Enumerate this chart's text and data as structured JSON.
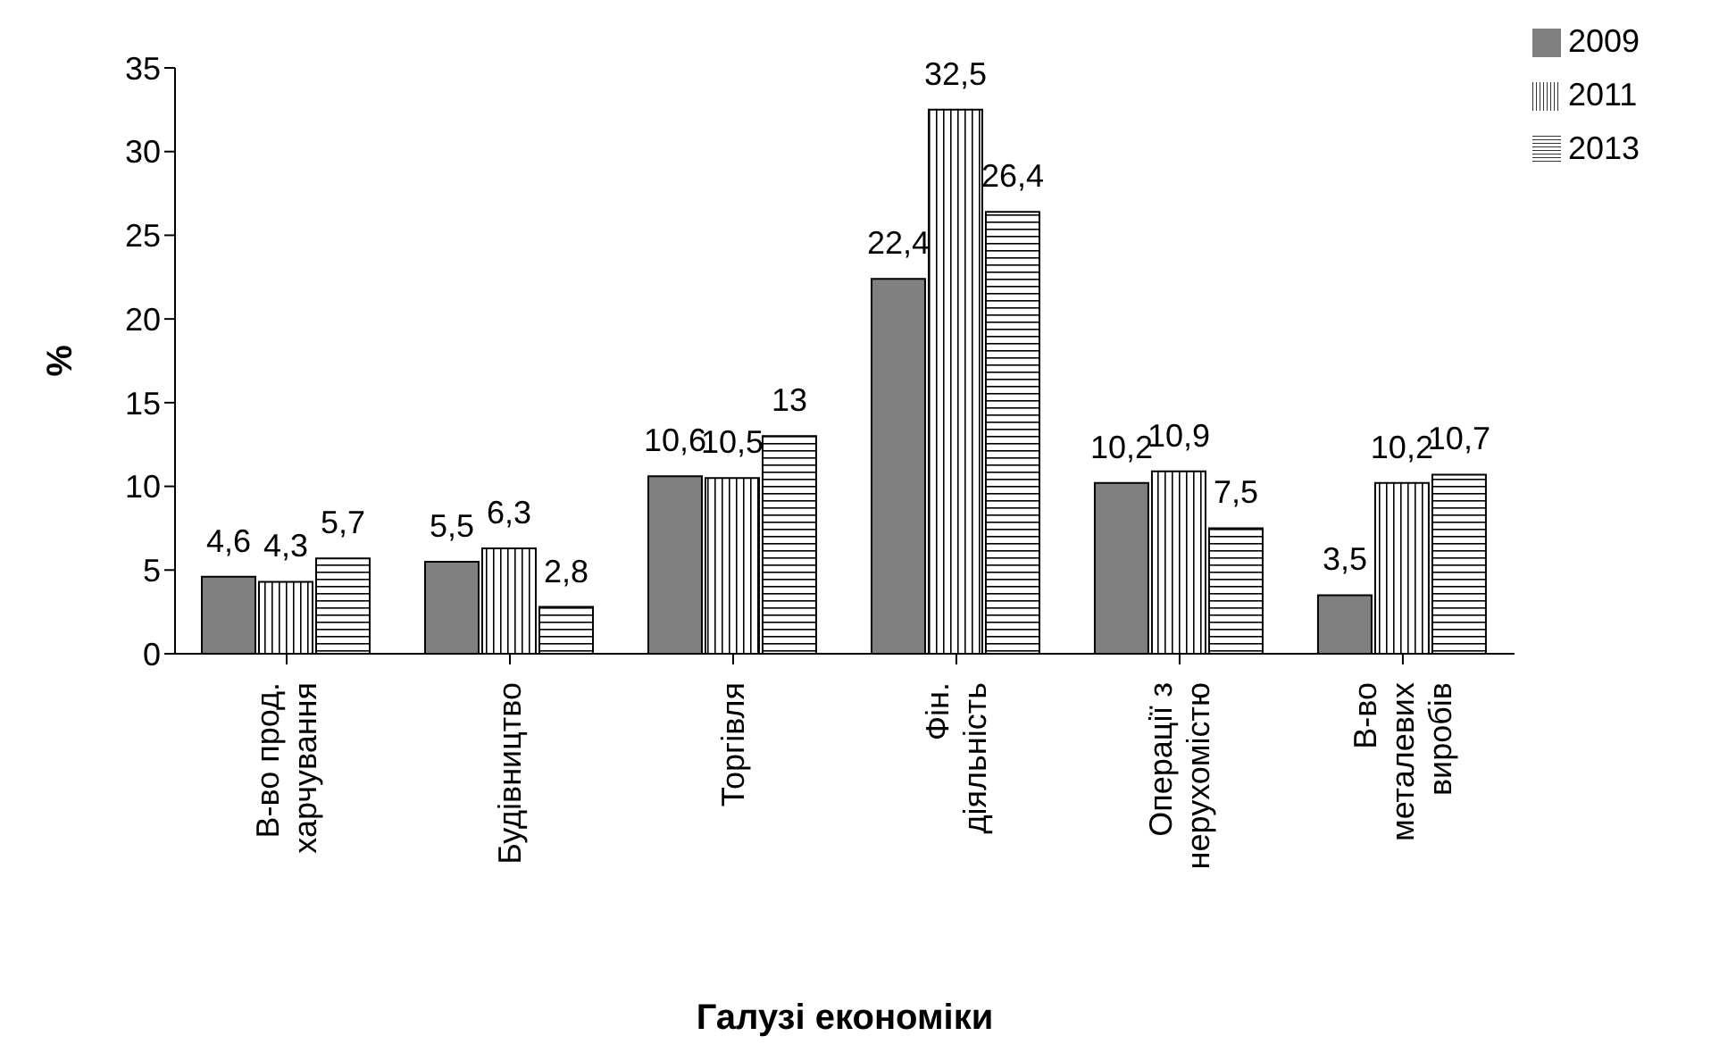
{
  "chart_data": {
    "type": "bar",
    "xlabel": "Галузі економіки",
    "ylabel": "%",
    "categories": [
      "В-во прод. харчування",
      "Будівництво",
      "Торгівля",
      "Фін. діяльність",
      "Операції з нерухомістю",
      "В-во металевих виробів"
    ],
    "series": [
      {
        "name": "2009",
        "color": "#808080",
        "values": [
          4.6,
          5.5,
          10.6,
          22.4,
          10.2,
          3.5
        ],
        "value_labels": [
          "4,6",
          "5,5",
          "10,6",
          "22,4",
          "10,2",
          "3,5"
        ]
      },
      {
        "name": "2011",
        "color": "#000000",
        "values": [
          4.3,
          6.3,
          10.5,
          32.5,
          10.9,
          10.2
        ],
        "value_labels": [
          "4,3",
          "6,3",
          "10,5",
          "32,5",
          "10,9",
          "10,2"
        ]
      },
      {
        "name": "2013",
        "color": "#000000",
        "values": [
          5.7,
          2.8,
          13,
          26.4,
          7.5,
          10.7
        ],
        "value_labels": [
          "5,7",
          "2,8",
          "13",
          "26,4",
          "7,5",
          "10,7"
        ]
      }
    ],
    "ylim": [
      0,
      35
    ],
    "yticks": [
      0,
      5,
      10,
      15,
      20,
      25,
      30,
      35
    ],
    "grid": false,
    "legend": "top right"
  }
}
